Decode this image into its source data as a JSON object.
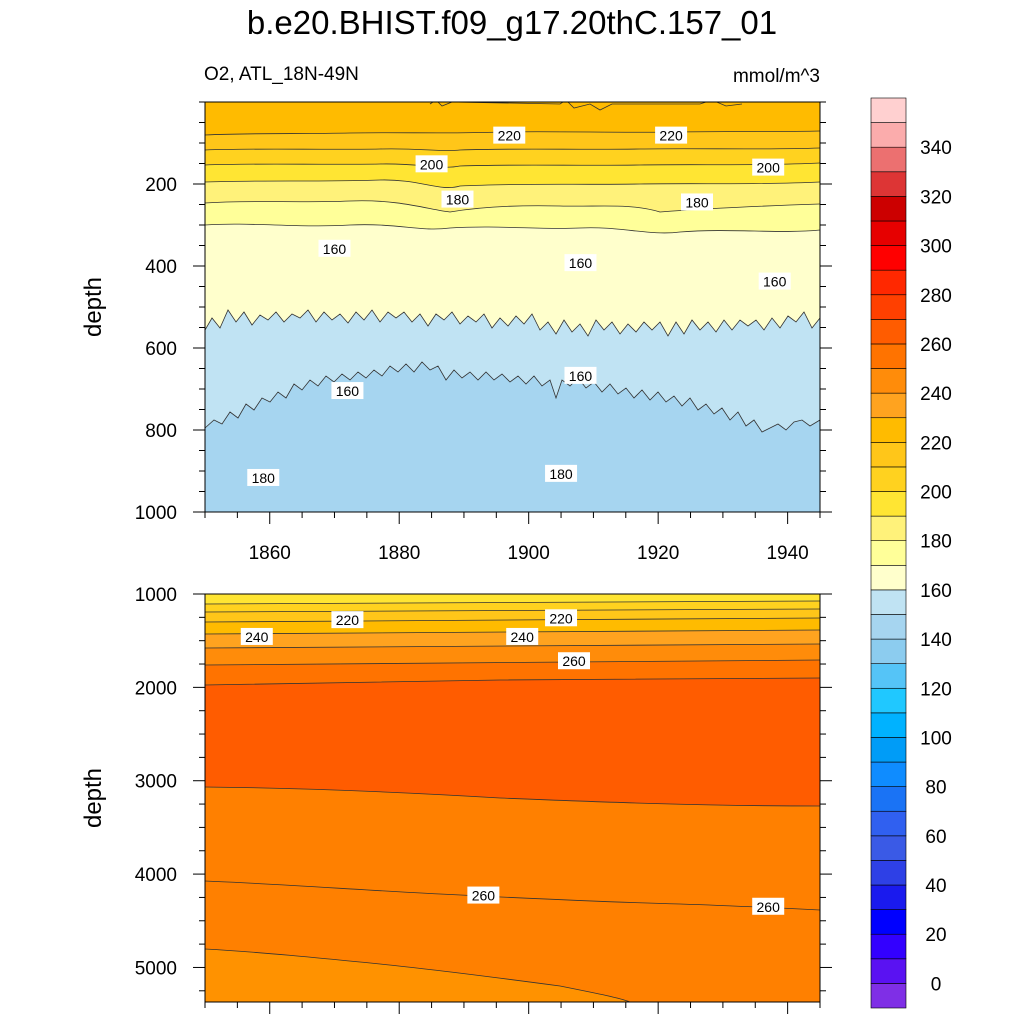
{
  "title": "b.e20.BHIST.f09_g17.20thC.157_01",
  "subtitle_left": "O2, ATL_18N-49N",
  "subtitle_right": "mmol/m^3",
  "chart_data": {
    "type": "heatmap",
    "variable": "O2",
    "region": "ATL_18N-49N",
    "units": "mmol/m^3",
    "x_range": [
      1850,
      1945
    ],
    "x_ticks": [
      "1860",
      "1880",
      "1900",
      "1920",
      "1940"
    ],
    "colorbar": {
      "range": [
        -10,
        360
      ],
      "interval": 10,
      "tick_labels": [
        "0",
        "20",
        "40",
        "60",
        "80",
        "100",
        "120",
        "140",
        "160",
        "180",
        "200",
        "220",
        "240",
        "260",
        "280",
        "300",
        "320",
        "340"
      ],
      "colors": [
        "#7f2fe6",
        "#5a12f2",
        "#3300ff",
        "#0000ff",
        "#1a1aee",
        "#2e40e6",
        "#3a5ae6",
        "#3060f0",
        "#1a73f5",
        "#0f8cff",
        "#009cf7",
        "#00b2ff",
        "#20c8ff",
        "#55c4f7",
        "#8cccef",
        "#a6d5f0",
        "#c0e3f3",
        "#ffffcc",
        "#ffff99",
        "#fff27a",
        "#ffe533",
        "#ffd21f",
        "#ffc619",
        "#ffbb00",
        "#ffa31f",
        "#ff8c0a",
        "#ff7300",
        "#ff5c00",
        "#ff4000",
        "#ff2800",
        "#ff0000",
        "#e60000",
        "#cc0000",
        "#dd3535",
        "#ec7070",
        "#fbacac",
        "#ffd0d0"
      ]
    },
    "panels": [
      {
        "name": "upper",
        "y_range": [
          0,
          1000
        ],
        "y_reversed": true,
        "y_ticks": [
          "200",
          "400",
          "600",
          "800",
          "1000"
        ],
        "y_label": "depth",
        "contour_labels": [
          {
            "text": "220",
            "x": 1897,
            "y": 82
          },
          {
            "text": "220",
            "x": 1922,
            "y": 82
          },
          {
            "text": "200",
            "x": 1885,
            "y": 152
          },
          {
            "text": "200",
            "x": 1937,
            "y": 160
          },
          {
            "text": "180",
            "x": 1889,
            "y": 238
          },
          {
            "text": "180",
            "x": 1926,
            "y": 245
          },
          {
            "text": "160",
            "x": 1870,
            "y": 358
          },
          {
            "text": "160",
            "x": 1908,
            "y": 393
          },
          {
            "text": "160",
            "x": 1938,
            "y": 438
          },
          {
            "text": "160",
            "x": 1872,
            "y": 705
          },
          {
            "text": "160",
            "x": 1908,
            "y": 668
          },
          {
            "text": "180",
            "x": 1859,
            "y": 917
          },
          {
            "text": "180",
            "x": 1905,
            "y": 907
          }
        ]
      },
      {
        "name": "lower",
        "y_range": [
          1000,
          5370
        ],
        "y_reversed": true,
        "y_ticks": [
          "1000",
          "2000",
          "3000",
          "4000",
          "5000"
        ],
        "y_label": "depth",
        "contour_labels": [
          {
            "text": "220",
            "x": 1872,
            "y": 1280
          },
          {
            "text": "220",
            "x": 1905,
            "y": 1260
          },
          {
            "text": "240",
            "x": 1858,
            "y": 1460
          },
          {
            "text": "240",
            "x": 1899,
            "y": 1460
          },
          {
            "text": "260",
            "x": 1907,
            "y": 1720
          },
          {
            "text": "260",
            "x": 1893,
            "y": 4230
          },
          {
            "text": "260",
            "x": 1937,
            "y": 4350
          }
        ]
      }
    ]
  }
}
